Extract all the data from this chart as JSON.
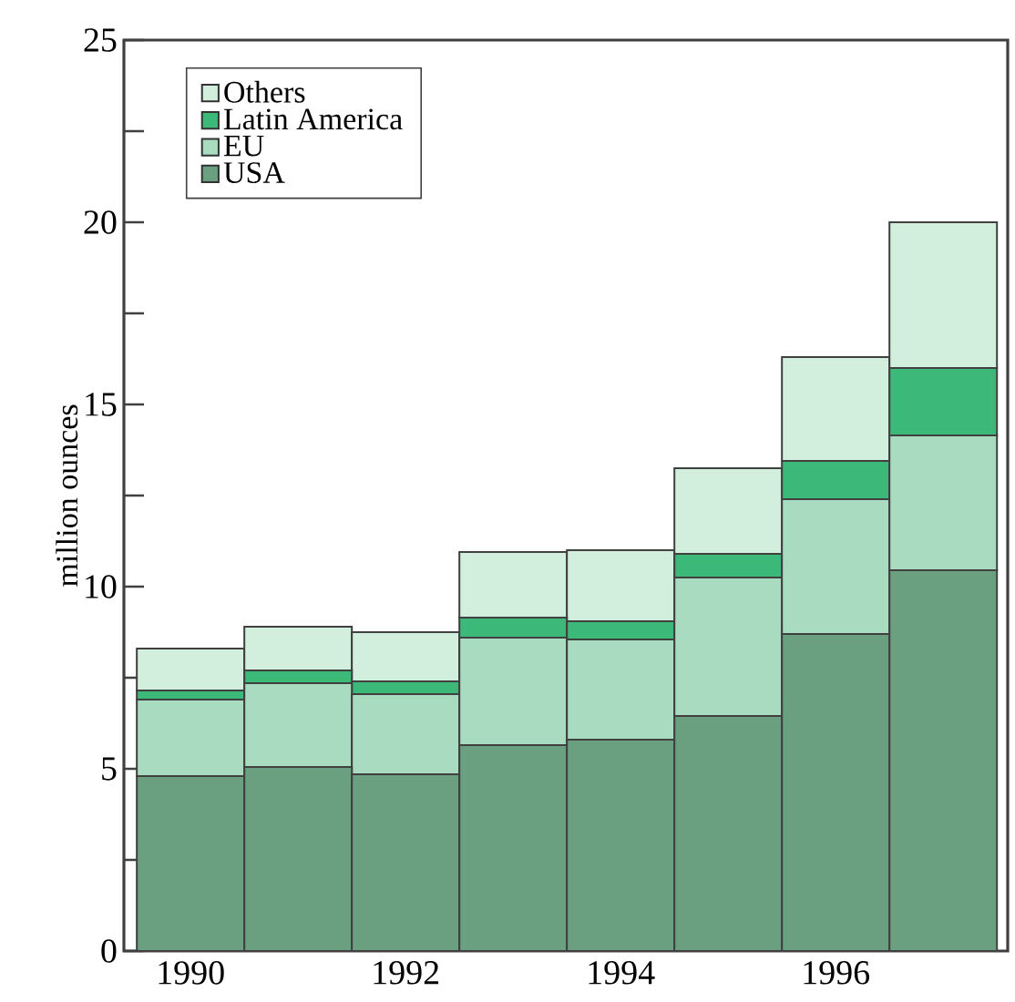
{
  "chart_data": {
    "type": "bar",
    "stacked": true,
    "ylabel": "million ounces",
    "categories": [
      "1990",
      null,
      "1992",
      null,
      "1994",
      null,
      "1996",
      null
    ],
    "series": [
      {
        "name": "USA",
        "color": "#6a9f80",
        "values": [
          4.8,
          5.05,
          4.85,
          5.65,
          5.8,
          6.45,
          8.7,
          10.45
        ]
      },
      {
        "name": "EU",
        "color": "#a8dbbf",
        "values": [
          2.1,
          2.3,
          2.2,
          2.95,
          2.75,
          3.8,
          3.7,
          3.7
        ]
      },
      {
        "name": "Latin America",
        "color": "#3cb878",
        "values": [
          0.25,
          0.35,
          0.35,
          0.55,
          0.5,
          0.65,
          1.05,
          1.85
        ]
      },
      {
        "name": "Others",
        "color": "#d2eedd",
        "values": [
          1.15,
          1.2,
          1.35,
          1.8,
          1.95,
          2.35,
          2.85,
          4.0
        ]
      }
    ],
    "ylim": [
      0,
      25
    ],
    "yticks": [
      0,
      {
        "value": 2.5,
        "label": null
      },
      5,
      {
        "value": 7.5,
        "label": null
      },
      10,
      {
        "value": 12.5,
        "label": null
      },
      15,
      {
        "value": 17.5,
        "label": null
      },
      20,
      {
        "value": 22.5,
        "label": null
      },
      25
    ],
    "legend": "top left",
    "grid": false
  }
}
